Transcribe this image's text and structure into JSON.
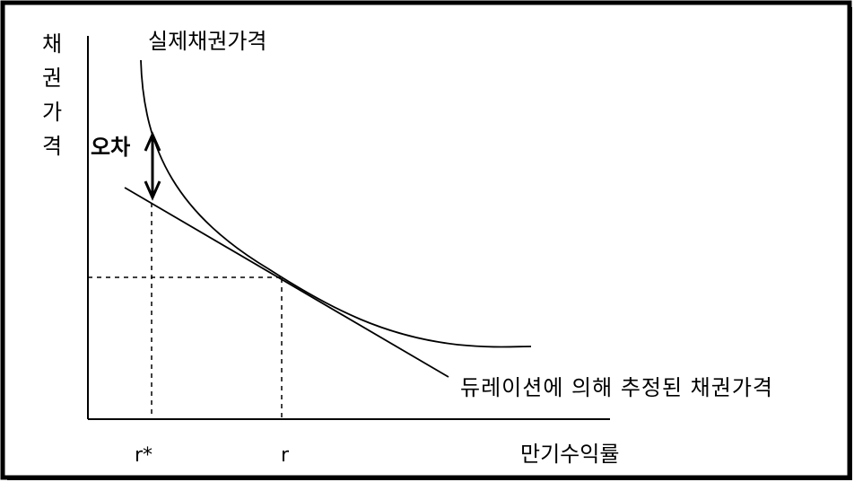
{
  "y_axis_title": [
    "채",
    "권",
    "가",
    "격"
  ],
  "labels": {
    "actual_price": "실제채권가격",
    "error": "오차",
    "duration_estimate": "듀레이션에 의해 추정된 채권가격",
    "x_axis_title": "만기수익률",
    "r_star": "r*",
    "r": "r"
  },
  "colors": {
    "line": "#000000",
    "frame": "#000000",
    "background": "#ffffff"
  }
}
